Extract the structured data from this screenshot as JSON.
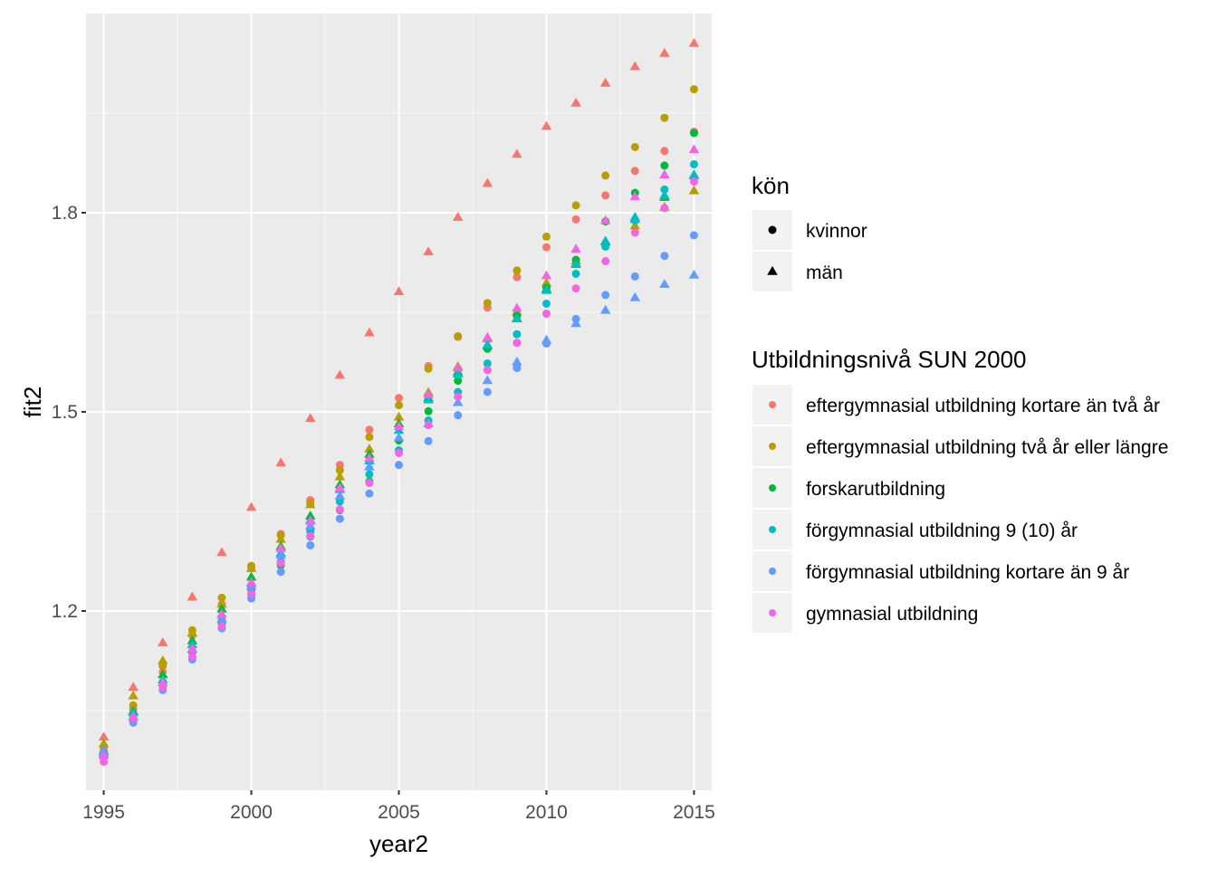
{
  "chart_data": {
    "type": "scatter",
    "xlabel": "year2",
    "ylabel": "fit2",
    "xlim": [
      1994.4,
      2015.6
    ],
    "ylim": [
      0.93,
      2.1
    ],
    "x_ticks": [
      1995,
      2000,
      2005,
      2010,
      2015
    ],
    "y_ticks": [
      1.2,
      1.5,
      1.8
    ],
    "x_tick_labels": [
      "1995",
      "2000",
      "2005",
      "2010",
      "2015"
    ],
    "y_tick_labels": [
      "1.2",
      "1.5",
      "1.8"
    ],
    "grid": true,
    "panel_background": "#ebebeb",
    "legend_position": "right",
    "x": [
      1995,
      1996,
      1997,
      1998,
      1999,
      2000,
      2001,
      2002,
      2003,
      2004,
      2005,
      2006,
      2007,
      2008,
      2009,
      2010,
      2011,
      2012,
      2013,
      2014,
      2015
    ],
    "shape_legend": {
      "title": "kön",
      "items": [
        {
          "label": "kvinnor",
          "shape": "circle"
        },
        {
          "label": "män",
          "shape": "triangle"
        }
      ]
    },
    "color_legend": {
      "title": "Utbildningsnivå SUN 2000",
      "items": [
        {
          "label": "eftergymnasial utbildning kortare än två år",
          "color": "#F8766D"
        },
        {
          "label": "eftergymnasial utbildning två år eller längre",
          "color": "#B79F00"
        },
        {
          "label": "forskarutbildning",
          "color": "#00BA38"
        },
        {
          "label": "förgymnasial utbildning 9 (10) år",
          "color": "#00BFC4"
        },
        {
          "label": "förgymnasial utbildning kortare än 9 år",
          "color": "#619CFF"
        },
        {
          "label": "gymnasial utbildning",
          "color": "#F564E3"
        }
      ]
    },
    "series": [
      {
        "education": "eftergymnasial utbildning kortare än två år",
        "sex": "kvinnor",
        "values": [
          0.99,
          1.052,
          1.108,
          1.163,
          1.21,
          1.265,
          1.316,
          1.367,
          1.42,
          1.473,
          1.521,
          1.569,
          1.613,
          1.657,
          1.703,
          1.748,
          1.79,
          1.826,
          1.863,
          1.893,
          1.922
        ]
      },
      {
        "education": "eftergymnasial utbildning kortare än två år",
        "sex": "män",
        "values": [
          1.01,
          1.085,
          1.152,
          1.221,
          1.288,
          1.356,
          1.423,
          1.49,
          1.555,
          1.619,
          1.681,
          1.741,
          1.793,
          1.844,
          1.888,
          1.93,
          1.965,
          1.995,
          2.02,
          2.04,
          2.055
        ]
      },
      {
        "education": "eftergymnasial utbildning två år eller längre",
        "sex": "kvinnor",
        "values": [
          0.995,
          1.058,
          1.117,
          1.171,
          1.22,
          1.268,
          1.314,
          1.362,
          1.412,
          1.462,
          1.51,
          1.565,
          1.614,
          1.664,
          1.713,
          1.764,
          1.811,
          1.856,
          1.899,
          1.943,
          1.986
        ]
      },
      {
        "education": "eftergymnasial utbildning två år eller längre",
        "sex": "män",
        "values": [
          1.0,
          1.072,
          1.125,
          1.167,
          1.21,
          1.264,
          1.308,
          1.36,
          1.402,
          1.444,
          1.492,
          1.529,
          1.568,
          1.61,
          1.65,
          1.694,
          1.727,
          1.757,
          1.78,
          1.808,
          1.833
        ]
      },
      {
        "education": "forskarutbildning",
        "sex": "kvinnor",
        "values": [
          0.985,
          1.044,
          1.093,
          1.138,
          1.182,
          1.225,
          1.269,
          1.312,
          1.352,
          1.395,
          1.457,
          1.501,
          1.547,
          1.595,
          1.645,
          1.687,
          1.729,
          1.787,
          1.83,
          1.871,
          1.92
        ]
      },
      {
        "education": "forskarutbildning",
        "sex": "män",
        "values": [
          0.985,
          1.049,
          1.104,
          1.155,
          1.203,
          1.251,
          1.297,
          1.343,
          1.39,
          1.436,
          1.482,
          1.521,
          1.56,
          1.599,
          1.641,
          1.685,
          1.723,
          1.756,
          1.79,
          1.823,
          1.856
        ]
      },
      {
        "education": "förgymnasial utbildning 9 (10) år",
        "sex": "kvinnor",
        "values": [
          0.982,
          1.038,
          1.088,
          1.139,
          1.186,
          1.231,
          1.274,
          1.32,
          1.365,
          1.406,
          1.442,
          1.487,
          1.53,
          1.573,
          1.617,
          1.663,
          1.708,
          1.749,
          1.788,
          1.835,
          1.873
        ]
      },
      {
        "education": "förgymnasial utbildning 9 (10) år",
        "sex": "män",
        "values": [
          0.988,
          1.047,
          1.096,
          1.149,
          1.195,
          1.242,
          1.287,
          1.337,
          1.383,
          1.426,
          1.472,
          1.518,
          1.557,
          1.601,
          1.64,
          1.683,
          1.722,
          1.757,
          1.793,
          1.826,
          1.857
        ]
      },
      {
        "education": "förgymnasial utbildning kortare än 9 år",
        "sex": "kvinnor",
        "values": [
          0.98,
          1.032,
          1.081,
          1.127,
          1.174,
          1.219,
          1.259,
          1.299,
          1.339,
          1.377,
          1.42,
          1.456,
          1.495,
          1.53,
          1.566,
          1.603,
          1.64,
          1.676,
          1.704,
          1.735,
          1.766
        ]
      },
      {
        "education": "förgymnasial utbildning kortare än 9 år",
        "sex": "män",
        "values": [
          0.99,
          1.04,
          1.092,
          1.142,
          1.188,
          1.238,
          1.284,
          1.328,
          1.373,
          1.417,
          1.461,
          1.482,
          1.514,
          1.547,
          1.575,
          1.608,
          1.633,
          1.653,
          1.672,
          1.692,
          1.706
        ]
      },
      {
        "education": "gymnasial utbildning",
        "sex": "kvinnor",
        "values": [
          0.973,
          1.038,
          1.085,
          1.131,
          1.177,
          1.226,
          1.272,
          1.313,
          1.353,
          1.393,
          1.438,
          1.48,
          1.523,
          1.563,
          1.604,
          1.648,
          1.686,
          1.727,
          1.77,
          1.807,
          1.847
        ]
      },
      {
        "education": "gymnasial utbildning",
        "sex": "män",
        "values": [
          0.982,
          1.041,
          1.092,
          1.143,
          1.195,
          1.243,
          1.294,
          1.335,
          1.385,
          1.43,
          1.478,
          1.526,
          1.566,
          1.612,
          1.656,
          1.705,
          1.745,
          1.788,
          1.824,
          1.857,
          1.895
        ]
      }
    ]
  }
}
